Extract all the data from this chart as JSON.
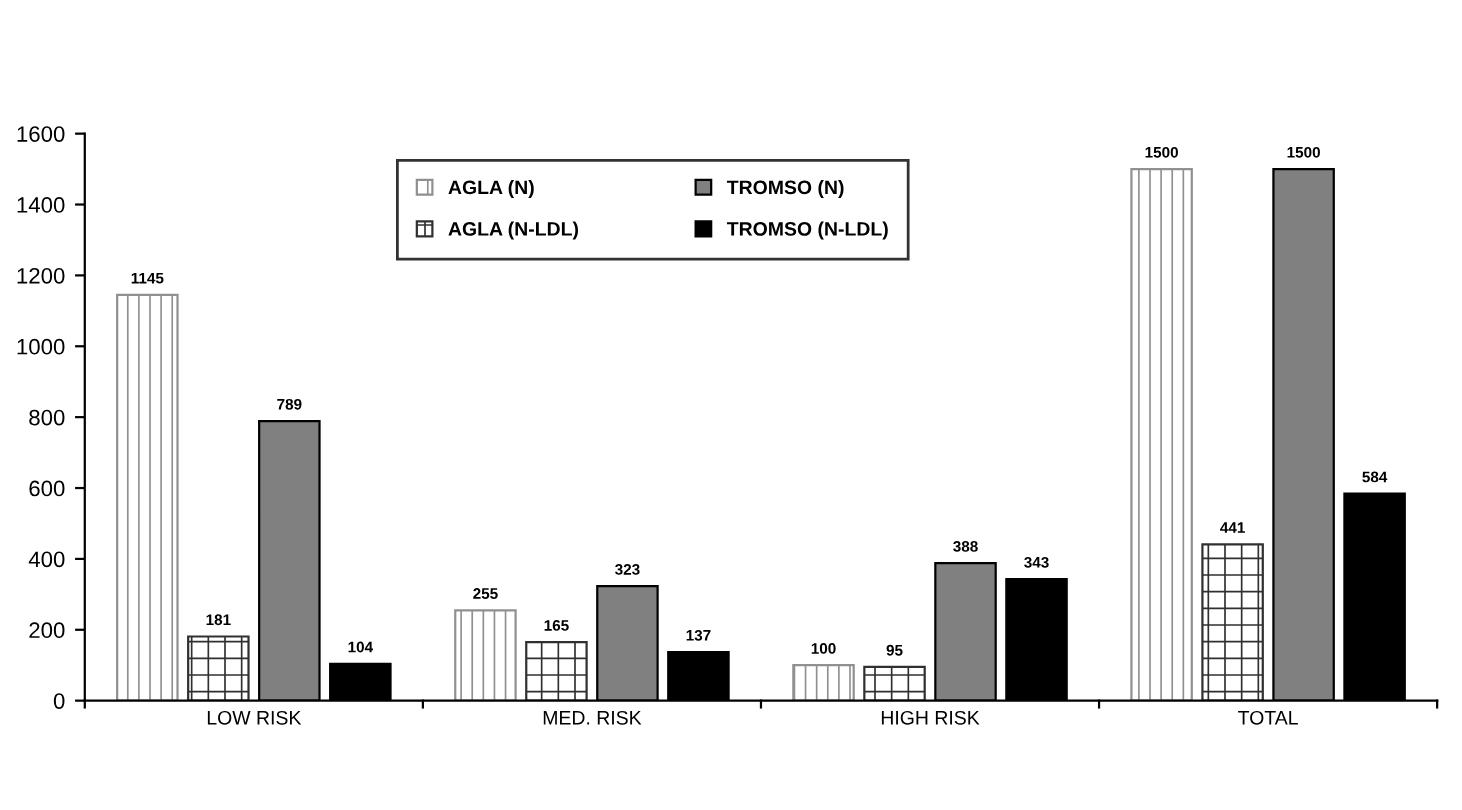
{
  "chart_data": {
    "type": "bar",
    "categories": [
      "LOW RISK",
      "MED. RISK",
      "HIGH RISK",
      "TOTAL"
    ],
    "series": [
      {
        "name": "AGLA (N)",
        "color": "#909090",
        "values": [
          1145,
          255,
          100,
          1500
        ]
      },
      {
        "name": "AGLA (N-LDL)",
        "color": "#303030",
        "values": [
          181,
          165,
          95,
          441
        ]
      },
      {
        "name": "TROMSO (N)",
        "color": "#808080",
        "values": [
          789,
          323,
          388,
          1500
        ]
      },
      {
        "name": "TROMSO (N-LDL)",
        "color": "#000000",
        "values": [
          104,
          137,
          343,
          584
        ]
      }
    ],
    "ylim": [
      0,
      1600
    ],
    "yticks": [
      0,
      200,
      400,
      600,
      800,
      1000,
      1200,
      1400,
      1600
    ],
    "data_labels": true,
    "legend": "top",
    "grid": false
  }
}
